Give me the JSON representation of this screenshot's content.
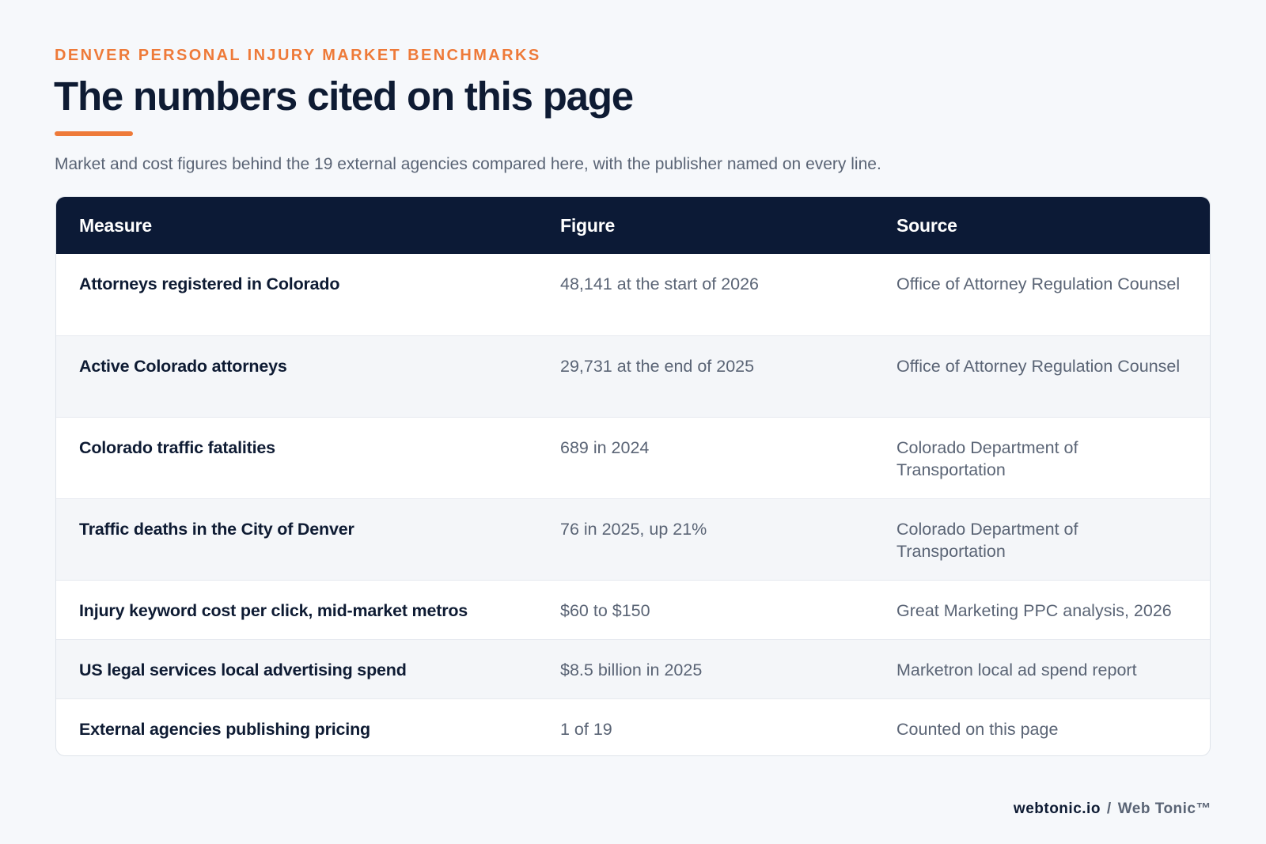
{
  "header": {
    "eyebrow": "DENVER PERSONAL INJURY MARKET BENCHMARKS",
    "title": "The numbers cited on this page",
    "subtitle": "Market and cost figures behind the 19 external agencies compared here, with the publisher named on every line."
  },
  "table": {
    "columns": [
      "Measure",
      "Figure",
      "Source"
    ],
    "rows": [
      {
        "measure": "Attorneys registered in Colorado",
        "figure": "48,141 at the start of 2026",
        "source": "Office of Attorney Regulation Counsel"
      },
      {
        "measure": "Active Colorado attorneys",
        "figure": "29,731 at the end of 2025",
        "source": "Office of Attorney Regulation Counsel"
      },
      {
        "measure": "Colorado traffic fatalities",
        "figure": "689 in 2024",
        "source": "Colorado Department of Transportation"
      },
      {
        "measure": "Traffic deaths in the City of Denver",
        "figure": "76 in 2025, up 21%",
        "source": "Colorado Department of Transportation"
      },
      {
        "measure": "Injury keyword cost per click, mid-market metros",
        "figure": "$60 to $150",
        "source": "Great Marketing PPC analysis, 2026"
      },
      {
        "measure": "US legal services local advertising spend",
        "figure": "$8.5 billion in 2025",
        "source": "Marketron local ad spend report"
      },
      {
        "measure": "External agencies publishing pricing",
        "figure": "1 of 19",
        "source": "Counted on this page"
      }
    ]
  },
  "footer": {
    "domain": "webtonic.io",
    "separator": "/",
    "brand": "Web Tonic™"
  },
  "colors": {
    "accent": "#ee7a39",
    "header_bg": "#0c1a36",
    "page_bg": "#f6f8fb"
  }
}
